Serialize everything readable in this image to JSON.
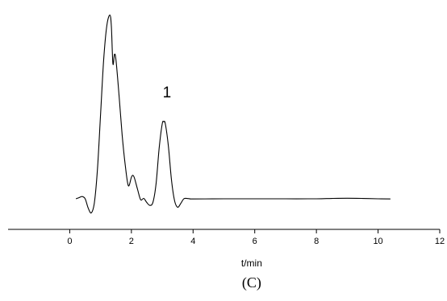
{
  "chart_data": {
    "type": "line",
    "title": "",
    "xlabel": "t/min",
    "ylabel": "",
    "caption": "(C)",
    "xlim": [
      -2,
      12
    ],
    "ylim": [
      -0.15,
      1.0
    ],
    "x_ticks": [
      0,
      2,
      4,
      6,
      8,
      10,
      12
    ],
    "grid": false,
    "legend": "none",
    "line_color": "#000000",
    "annotations": [
      {
        "text": "1",
        "x": 3.1,
        "y": 0.54
      }
    ],
    "series": [
      {
        "x": [
          0.2,
          0.3,
          0.4,
          0.5,
          0.6,
          0.7,
          0.8,
          0.9,
          1.0,
          1.1,
          1.2,
          1.3,
          1.35,
          1.4,
          1.45,
          1.5,
          1.6,
          1.7,
          1.8,
          1.9,
          2.0,
          2.05,
          2.1,
          2.2,
          2.3,
          2.4,
          2.5,
          2.6,
          2.7,
          2.8,
          2.9,
          3.0,
          3.05,
          3.1,
          3.2,
          3.3,
          3.4,
          3.5,
          3.6,
          3.7,
          3.8,
          3.9,
          4.0,
          5.0,
          6.0,
          7.0,
          8.0,
          8.5,
          9.0,
          9.5,
          10.0,
          10.4
        ],
        "y": [
          0.0,
          0.006,
          0.012,
          0.0,
          -0.05,
          -0.075,
          -0.02,
          0.16,
          0.45,
          0.74,
          0.92,
          0.98,
          0.92,
          0.72,
          0.77,
          0.74,
          0.55,
          0.34,
          0.18,
          0.07,
          0.115,
          0.125,
          0.11,
          0.05,
          -0.005,
          0.002,
          -0.02,
          -0.035,
          -0.018,
          0.08,
          0.27,
          0.4,
          0.41,
          0.4,
          0.28,
          0.1,
          -0.01,
          -0.045,
          -0.025,
          0.0,
          0.002,
          0.0,
          -0.001,
          0.0,
          0.0,
          0.0,
          0.0,
          0.002,
          0.003,
          0.002,
          0.0,
          -0.001
        ]
      }
    ]
  }
}
